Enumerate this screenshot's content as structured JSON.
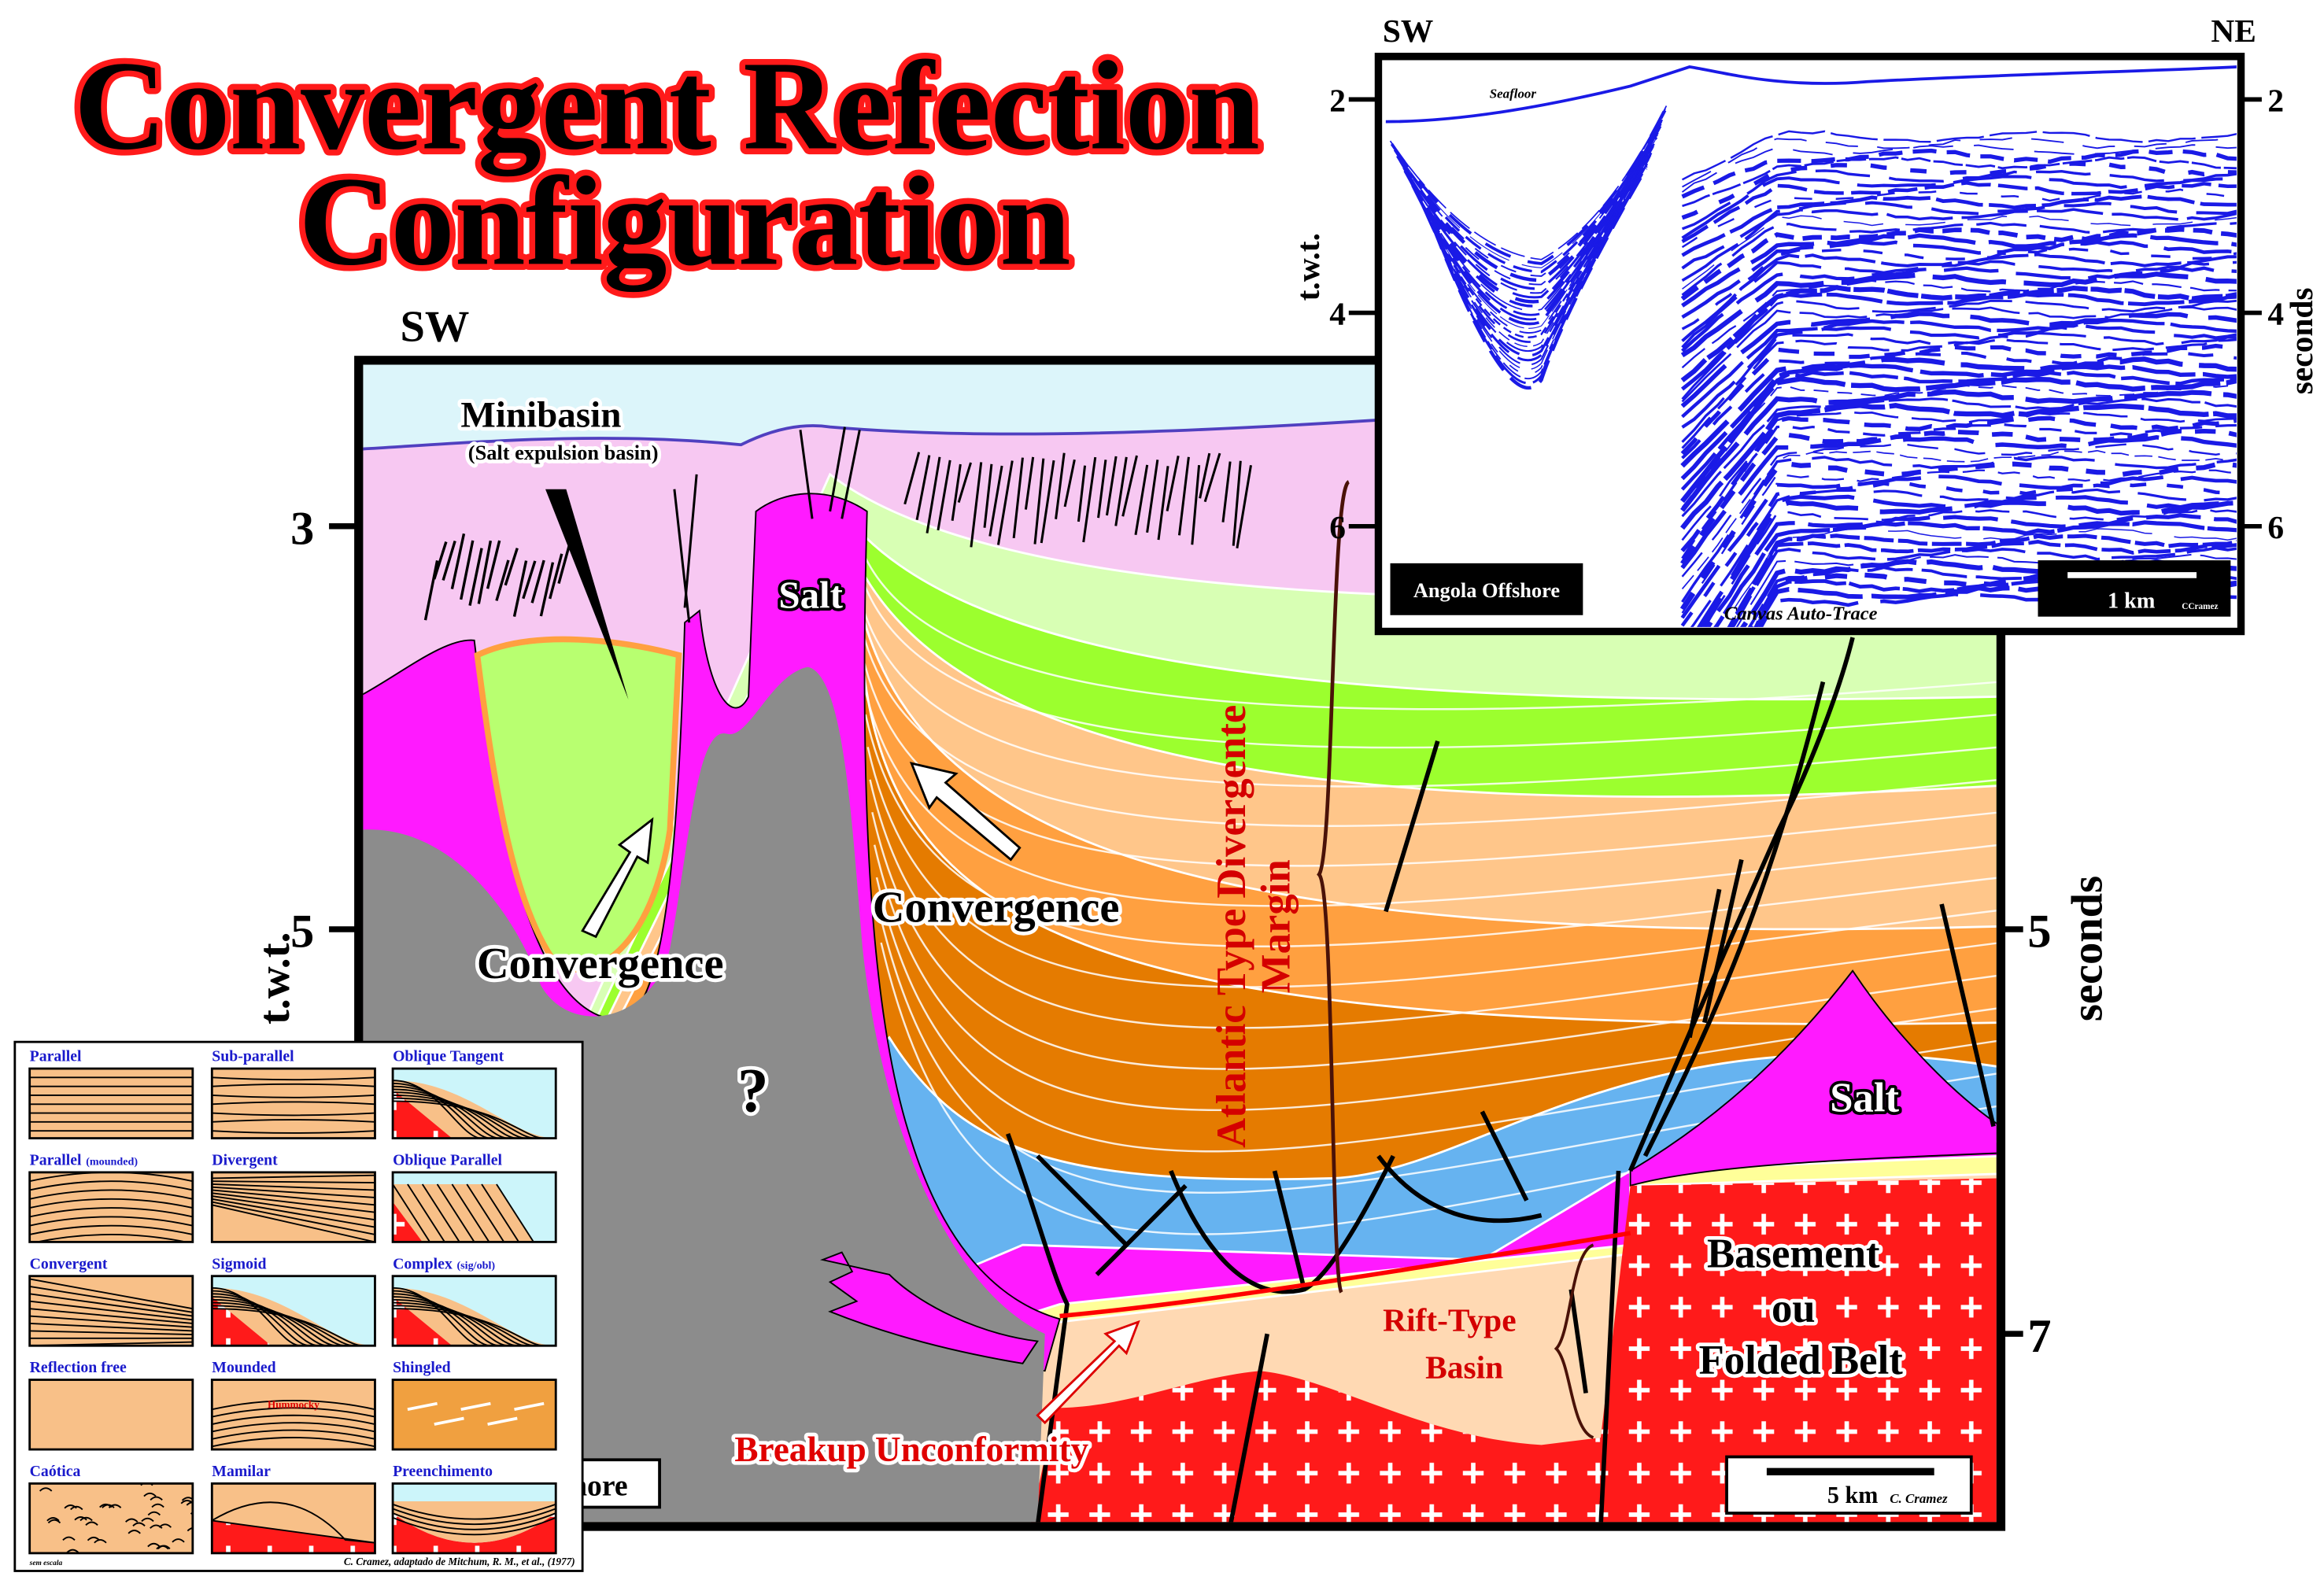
{
  "title": {
    "lines": [
      "Convergent Refection",
      "Configuration"
    ]
  },
  "cross_section": {
    "orientation": "SW",
    "axis_label": "t.w.t.",
    "unit_label": "seconds",
    "left_ticks": [
      "3",
      "5"
    ],
    "right_ticks": [
      "5",
      "7"
    ],
    "labels": {
      "minibasin": "Minibasin",
      "minibasin_note": "(Salt expulsion basin)",
      "salt_diapir": "Salt",
      "convergence_left": "Convergence",
      "convergence_right": "Convergence",
      "unknown": "?",
      "margin_lines": [
        "Atlantic Type Divergente",
        "Margin"
      ],
      "salt_right": "Salt",
      "basement_lines": [
        "Basement",
        "ou",
        "Folded Belt"
      ],
      "rift_lines": [
        "Rift-Type",
        "Basin"
      ],
      "breakup": "Breakup Unconformity",
      "location_fragment": "hore"
    },
    "scale": "5 km",
    "credit": "C. Cramez"
  },
  "seismic_inset": {
    "left": "SW",
    "right": "NE",
    "axis_label": "t.w.t.",
    "unit_label": "seconds",
    "left_ticks": [
      "2",
      "4",
      "6"
    ],
    "right_ticks": [
      "2",
      "4",
      "6"
    ],
    "seafloor": "Seafloor",
    "location": "Angola Offshore",
    "method": "Canvas Auto-Trace",
    "scale": "1 km",
    "credit": "CCramez"
  },
  "legend": {
    "cells": [
      {
        "label": "Parallel"
      },
      {
        "label": "Sub-parallel"
      },
      {
        "label": "Oblique Tangent"
      },
      {
        "label": "Parallel",
        "note": "(mounded)"
      },
      {
        "label": "Divergent"
      },
      {
        "label": "Oblique Parallel"
      },
      {
        "label": "Convergent"
      },
      {
        "label": "Sigmoid"
      },
      {
        "label": "Complex",
        "note": "(sig/obl)"
      },
      {
        "label": "Reflection free"
      },
      {
        "label": "Mounded",
        "inner": "Hummocky"
      },
      {
        "label": "Shingled"
      },
      {
        "label": "Caótica"
      },
      {
        "label": "Mamilar"
      },
      {
        "label": "Preenchimento"
      }
    ],
    "credit": "C. Cramez, adaptado de Mitchum, R. M., et al., (1977)",
    "scale_note": "sem escala"
  }
}
